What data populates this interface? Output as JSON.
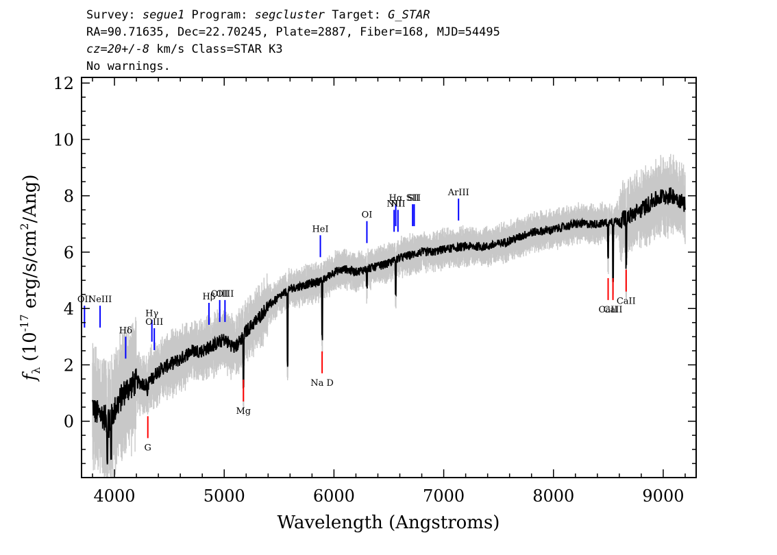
{
  "header": {
    "line1": {
      "survey_label": "Survey: ",
      "survey": "segue1",
      "program_label": " Program: ",
      "program": "segcluster",
      "target_label": " Target: ",
      "target": "G_STAR"
    },
    "line2": "RA=90.71635, Dec=22.70245, Plate=2887, Fiber=168, MJD=54495",
    "line3": {
      "cz": "cz=20+/-8",
      "rest": " km/s Class=STAR K3"
    },
    "line4": "No warnings."
  },
  "chart_data": {
    "type": "line",
    "xlabel": "Wavelength (Angstroms)",
    "ylabel": "f_λ (10^-17 erg/s/cm²/Ang)",
    "ylabel_parts": {
      "f": "f",
      "sub": "λ",
      "pre": " (10",
      "exp1": "-17",
      "mid": " erg/s/cm",
      "exp2": "2",
      "post": "/Ang)"
    },
    "xlim": [
      3700,
      9300
    ],
    "ylim": [
      -2,
      12.2
    ],
    "x_ticks": [
      4000,
      5000,
      6000,
      7000,
      8000,
      9000
    ],
    "x_tick_labels": [
      "4000",
      "5000",
      "6000",
      "7000",
      "8000",
      "9000"
    ],
    "y_ticks": [
      0,
      2,
      4,
      6,
      8,
      10,
      12
    ],
    "y_tick_labels": [
      "0",
      "2",
      "4",
      "6",
      "8",
      "10",
      "12"
    ],
    "spectrum_anchors": [
      [
        3800,
        0.6
      ],
      [
        3830,
        0.3
      ],
      [
        3900,
        0.2
      ],
      [
        3950,
        -0.1
      ],
      [
        4000,
        0.4
      ],
      [
        4100,
        1.1
      ],
      [
        4200,
        1.4
      ],
      [
        4300,
        1.3
      ],
      [
        4400,
        1.8
      ],
      [
        4500,
        2.0
      ],
      [
        4600,
        2.2
      ],
      [
        4700,
        2.5
      ],
      [
        4800,
        2.5
      ],
      [
        4900,
        2.7
      ],
      [
        5000,
        2.9
      ],
      [
        5100,
        2.6
      ],
      [
        5200,
        3.2
      ],
      [
        5300,
        3.6
      ],
      [
        5400,
        4.1
      ],
      [
        5500,
        4.4
      ],
      [
        5600,
        4.7
      ],
      [
        5700,
        4.8
      ],
      [
        5800,
        4.9
      ],
      [
        5900,
        5.0
      ],
      [
        6000,
        5.3
      ],
      [
        6100,
        5.4
      ],
      [
        6200,
        5.3
      ],
      [
        6300,
        5.4
      ],
      [
        6400,
        5.5
      ],
      [
        6500,
        5.6
      ],
      [
        6600,
        5.8
      ],
      [
        6700,
        5.9
      ],
      [
        6800,
        6.0
      ],
      [
        6900,
        6.0
      ],
      [
        7000,
        6.1
      ],
      [
        7200,
        6.2
      ],
      [
        7400,
        6.2
      ],
      [
        7600,
        6.4
      ],
      [
        7800,
        6.7
      ],
      [
        8000,
        6.8
      ],
      [
        8200,
        7.0
      ],
      [
        8400,
        7.0
      ],
      [
        8600,
        7.1
      ],
      [
        8800,
        7.5
      ],
      [
        8900,
        7.8
      ],
      [
        9000,
        8.0
      ],
      [
        9100,
        8.0
      ],
      [
        9200,
        7.7
      ]
    ],
    "absorption_dips": [
      [
        3934,
        -1.6
      ],
      [
        3969,
        -1.4
      ],
      [
        4300,
        0.8
      ],
      [
        5175,
        1.1
      ],
      [
        5578,
        1.9
      ],
      [
        5892,
        2.8
      ],
      [
        6300,
        4.7
      ],
      [
        6563,
        4.4
      ],
      [
        8498,
        5.6
      ],
      [
        8542,
        4.9
      ],
      [
        8662,
        5.4
      ]
    ],
    "emission_lines": [
      {
        "label": "OII",
        "x": 3727,
        "y": 4.1
      },
      {
        "label": "NeIII",
        "x": 3869,
        "y": 4.1
      },
      {
        "label": "Hδ",
        "x": 4102,
        "y": 3.0
      },
      {
        "label": "Hγ",
        "x": 4341,
        "y": 3.6
      },
      {
        "label": "OIII",
        "x": 4363,
        "y": 3.3
      },
      {
        "label": "Hβ",
        "x": 4861,
        "y": 4.2
      },
      {
        "label": "OIII",
        "x": 4959,
        "y": 4.3
      },
      {
        "label": "OIII",
        "x": 5007,
        "y": 4.3
      },
      {
        "label": "HeI",
        "x": 5876,
        "y": 6.6
      },
      {
        "label": "OI",
        "x": 6300,
        "y": 7.1
      },
      {
        "label": "NII",
        "x": 6548,
        "y": 7.5
      },
      {
        "label": "Hα",
        "x": 6563,
        "y": 7.7
      },
      {
        "label": "NII",
        "x": 6583,
        "y": 7.5
      },
      {
        "label": "SII",
        "x": 6717,
        "y": 7.7
      },
      {
        "label": "SII",
        "x": 6731,
        "y": 7.7
      },
      {
        "label": "ArIII",
        "x": 7135,
        "y": 7.9
      }
    ],
    "absorption_lines": [
      {
        "label": "G",
        "x": 4304,
        "y": -0.6
      },
      {
        "label": "Mg",
        "x": 5175,
        "y": 0.7
      },
      {
        "label": "Na D",
        "x": 5892,
        "y": 1.7
      },
      {
        "label": "CaII",
        "x": 8498,
        "y": 4.3
      },
      {
        "label": "CaII",
        "x": 8542,
        "y": 4.3
      },
      {
        "label": "CaII",
        "x": 8662,
        "y": 4.6
      }
    ],
    "colors": {
      "spectrum": "#000000",
      "noise": "#c8c8c8",
      "emission": "#0000ff",
      "absorption": "#ff0000"
    }
  }
}
